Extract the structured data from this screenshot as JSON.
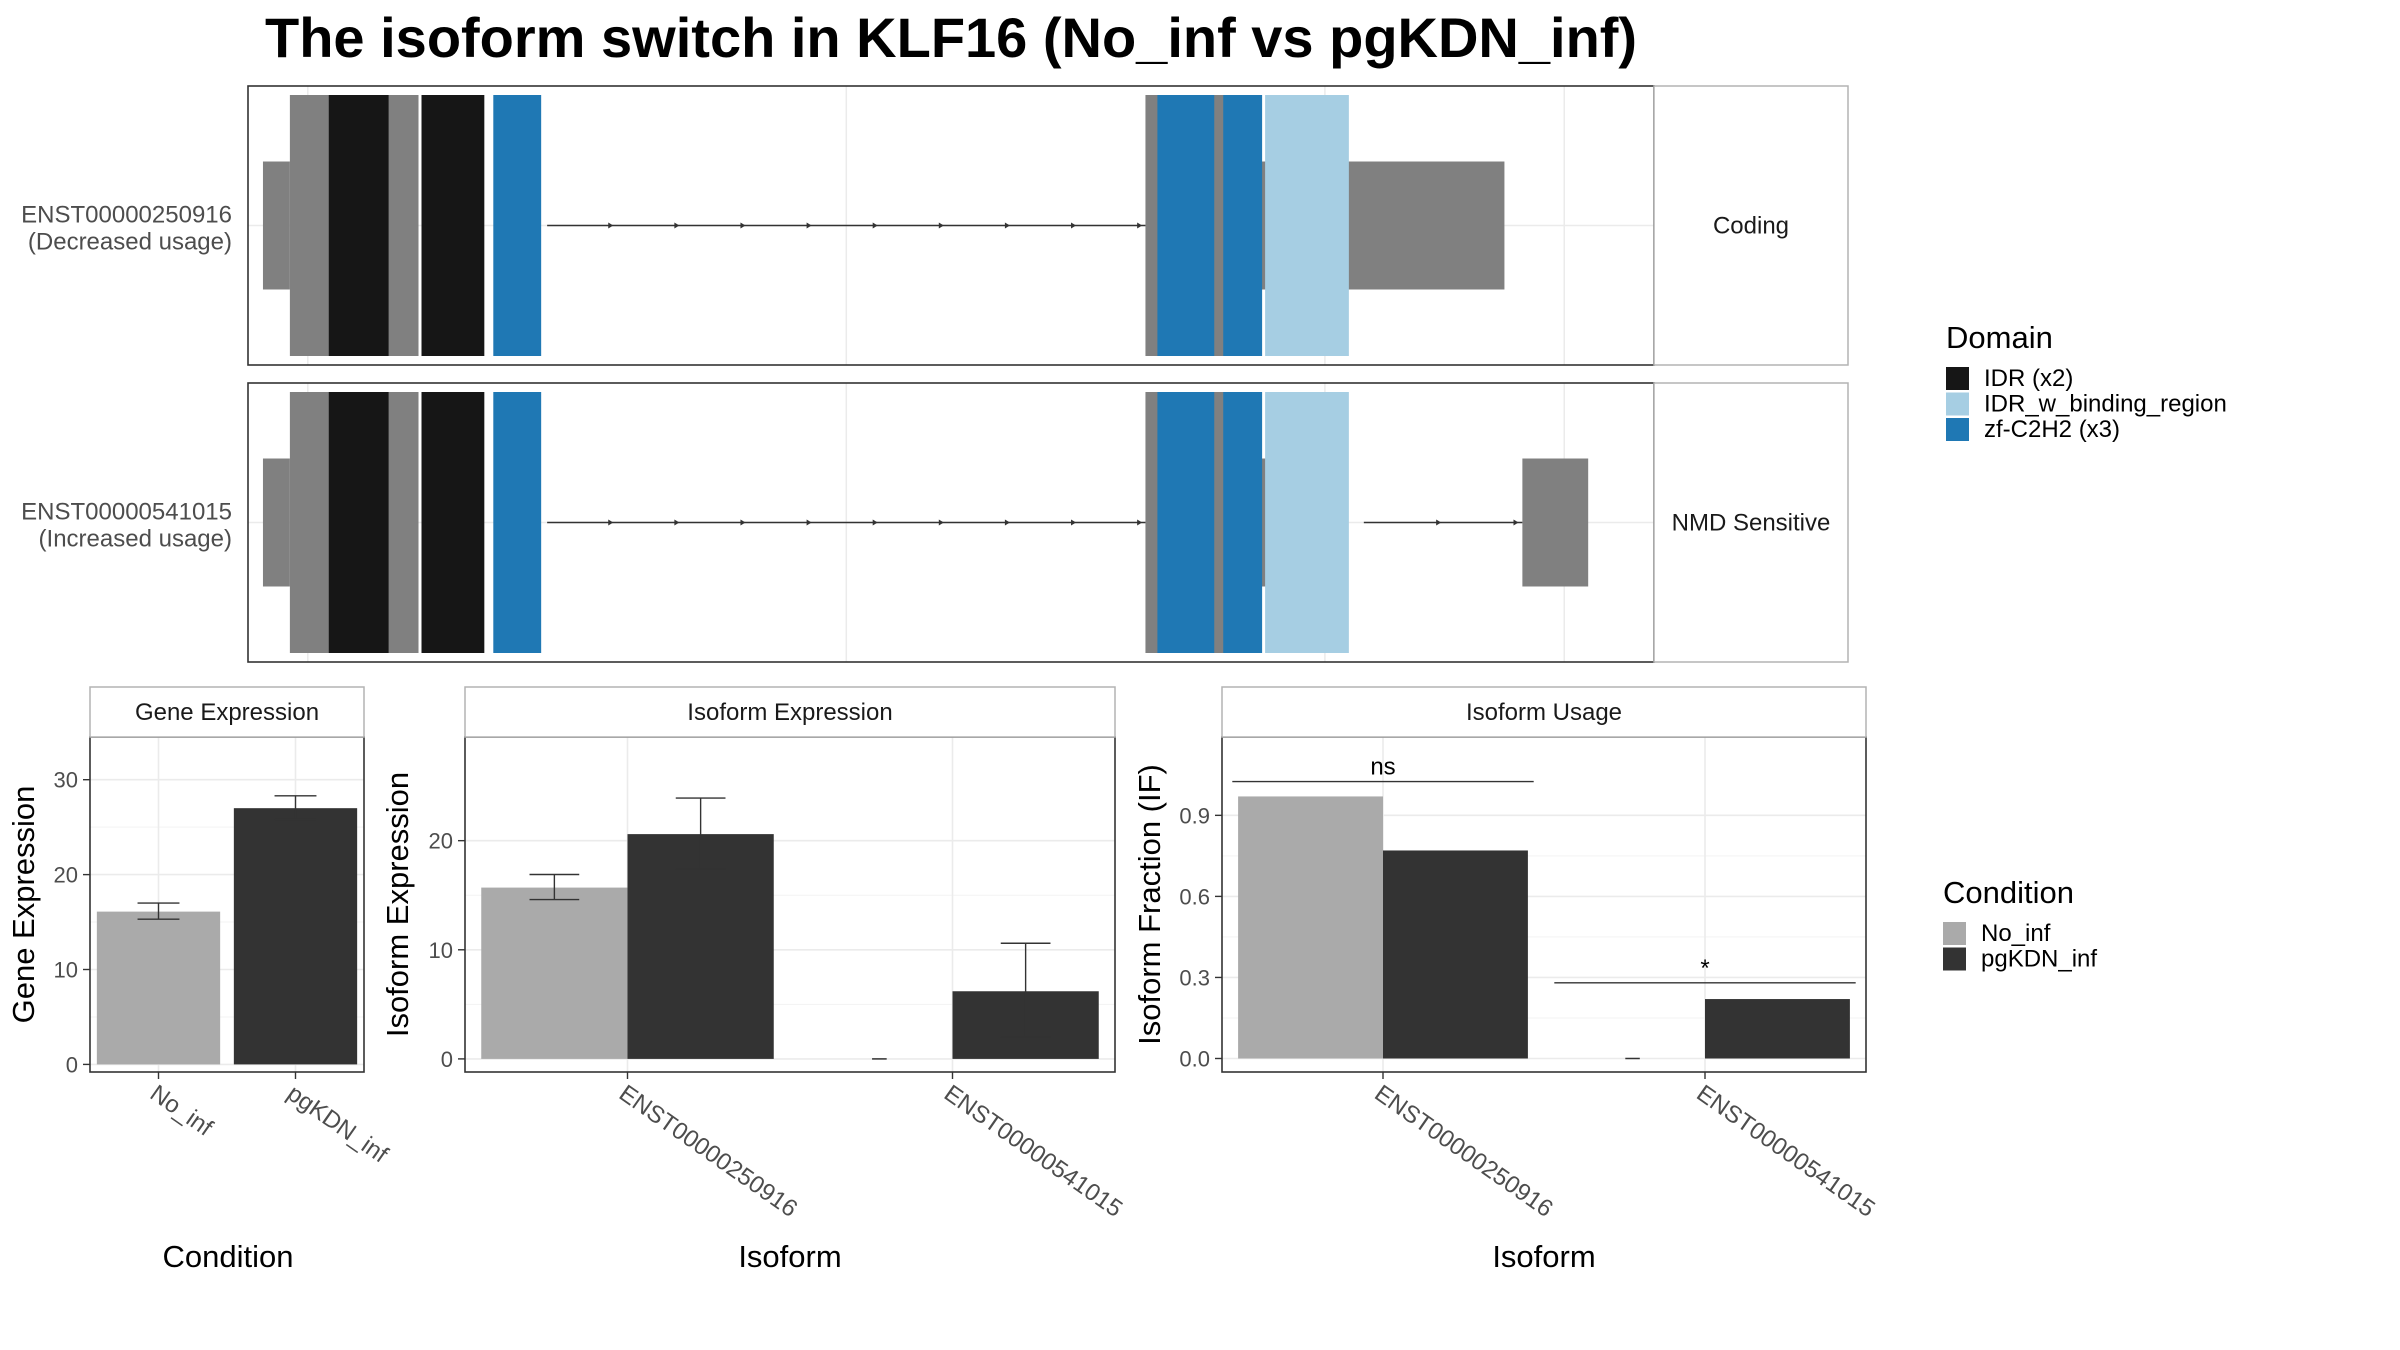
{
  "title": "The isoform switch in KLF16 (No_inf vs pgKDN_inf)",
  "colors": {
    "exon": "#808080",
    "IDR": "#161616",
    "IDR_w_binding_region": "#a6cee3",
    "zf_C2H2": "#1f78b4",
    "No_inf": "#aaaaaa",
    "pgKDN_inf": "#333333",
    "panel_border": "#333333",
    "strip_border": "#b3b3b3",
    "grid": "#ebebeb"
  },
  "transcripts": [
    {
      "id": "ENST00000250916",
      "usage": "(Decreased usage)",
      "category": "Coding",
      "exons": [
        [
          0.25,
          0.7,
          "utr"
        ],
        [
          0.7,
          2.85,
          "cds"
        ],
        [
          15.0,
          16.65,
          "cds"
        ],
        [
          16.65,
          21.0,
          "utr"
        ]
      ],
      "domains": [
        [
          1.35,
          2.35,
          "IDR"
        ],
        [
          2.9,
          3.95,
          "IDR"
        ],
        [
          4.1,
          4.9,
          "zf_C2H2"
        ],
        [
          15.2,
          16.15,
          "zf_C2H2"
        ],
        [
          16.3,
          16.95,
          "zf_C2H2"
        ],
        [
          17.0,
          18.4,
          "IDR_w_binding_region"
        ]
      ],
      "introns": [
        [
          5.0,
          15.0
        ]
      ]
    },
    {
      "id": "ENST00000541015",
      "usage": "(Increased usage)",
      "category": "NMD Sensitive",
      "exons": [
        [
          0.25,
          0.7,
          "utr"
        ],
        [
          0.7,
          2.85,
          "cds"
        ],
        [
          15.0,
          16.65,
          "cds"
        ],
        [
          16.65,
          17.9,
          "utr"
        ],
        [
          21.3,
          22.4,
          "utr"
        ]
      ],
      "domains": [
        [
          1.35,
          2.35,
          "IDR"
        ],
        [
          2.9,
          3.95,
          "IDR"
        ],
        [
          4.1,
          4.9,
          "zf_C2H2"
        ],
        [
          15.2,
          16.15,
          "zf_C2H2"
        ],
        [
          16.3,
          16.95,
          "zf_C2H2"
        ],
        [
          17.0,
          18.4,
          "IDR_w_binding_region"
        ]
      ],
      "introns": [
        [
          5.0,
          15.0
        ],
        [
          18.65,
          21.3
        ]
      ]
    }
  ],
  "legend_domain": {
    "title": "Domain",
    "items": [
      {
        "label": "IDR (x2)",
        "color_key": "IDR"
      },
      {
        "label": "IDR_w_binding_region",
        "color_key": "IDR_w_binding_region"
      },
      {
        "label": "zf-C2H2 (x3)",
        "color_key": "zf_C2H2"
      }
    ]
  },
  "legend_condition": {
    "title": "Condition",
    "items": [
      {
        "label": "No_inf",
        "color_key": "No_inf"
      },
      {
        "label": "pgKDN_inf",
        "color_key": "pgKDN_inf"
      }
    ]
  },
  "chart_data": [
    {
      "type": "bar",
      "strip": "Gene Expression",
      "xlabel": "Condition",
      "ylabel": "Gene Expression",
      "categories": [
        "No_inf",
        "pgKDN_inf"
      ],
      "values": [
        16.1,
        27.0
      ],
      "errors": [
        [
          15.3,
          17.0
        ],
        [
          25.8,
          28.3
        ]
      ],
      "ylim": [
        -0.8,
        34.5
      ],
      "yticks": [
        0,
        10,
        20,
        30
      ],
      "grid": true
    },
    {
      "type": "bar",
      "strip": "Isoform Expression",
      "xlabel": "Isoform",
      "ylabel": "Isoform Expression",
      "categories": [
        "ENST00000250916",
        "ENST00000541015"
      ],
      "series": [
        {
          "name": "No_inf",
          "values": [
            15.7,
            0.0
          ],
          "errors": [
            [
              14.6,
              16.9
            ],
            [
              0.0,
              0.0
            ]
          ]
        },
        {
          "name": "pgKDN_inf",
          "values": [
            20.6,
            6.2
          ],
          "errors": [
            [
              17.4,
              23.9
            ],
            [
              2.0,
              10.6
            ]
          ]
        }
      ],
      "ylim": [
        -1.2,
        29.5
      ],
      "yticks": [
        0,
        10,
        20
      ],
      "grid": true
    },
    {
      "type": "bar",
      "strip": "Isoform Usage",
      "xlabel": "Isoform",
      "ylabel": "Isoform Fraction (IF)",
      "categories": [
        "ENST00000250916",
        "ENST00000541015"
      ],
      "series": [
        {
          "name": "No_inf",
          "values": [
            0.97,
            0.0
          ]
        },
        {
          "name": "pgKDN_inf",
          "values": [
            0.77,
            0.22
          ]
        }
      ],
      "significance": [
        {
          "category": "ENST00000250916",
          "label": "ns",
          "y": 1.025
        },
        {
          "category": "ENST00000541015",
          "label": "*",
          "y": 0.28
        }
      ],
      "ylim": [
        -0.05,
        1.19
      ],
      "yticks": [
        0.0,
        0.3,
        0.6,
        0.9
      ],
      "ytick_labels": [
        "0.0",
        "0.3",
        "0.6",
        "0.9"
      ],
      "grid": true
    }
  ]
}
